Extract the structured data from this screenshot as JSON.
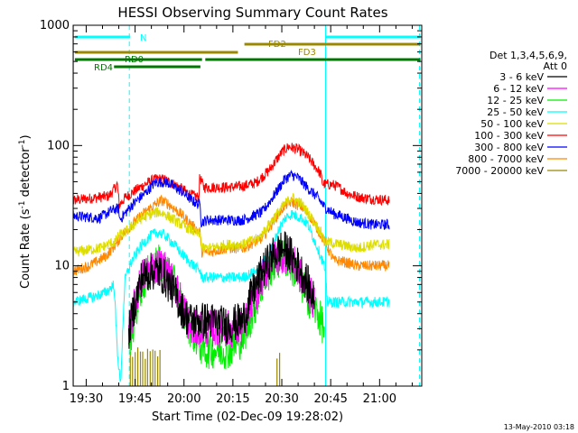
{
  "chart_data": {
    "type": "line",
    "title": "HESSI Observing Summary Count Rates",
    "xlabel": "Start Time (02-Dec-09 19:28:02)",
    "ylabel_main": "Count Rate (s",
    "ylabel_sup1": "-1",
    "ylabel_mid": " detector",
    "ylabel_sup2": "-1",
    "ylabel_end": ")",
    "yscale": "log",
    "ylim": [
      1,
      1000
    ],
    "xlim_minutes": [
      -2.03,
      104.9
    ],
    "x_ticks": [
      {
        "label": "19:30",
        "min": 1.97
      },
      {
        "label": "19:45",
        "min": 16.97
      },
      {
        "label": "20:00",
        "min": 31.97
      },
      {
        "label": "20:15",
        "min": 46.97
      },
      {
        "label": "20:30",
        "min": 61.97
      },
      {
        "label": "20:45",
        "min": 76.97
      },
      {
        "label": "21:00",
        "min": 91.97
      }
    ],
    "y_ticks": [
      {
        "label": "1",
        "v": 1
      },
      {
        "label": "10",
        "v": 10
      },
      {
        "label": "100",
        "v": 100
      },
      {
        "label": "1000",
        "v": 1000
      }
    ],
    "legend": {
      "header1": "Det 1,3,4,5,6,9,",
      "header2": "Att 0",
      "entries": [
        {
          "label": "3 - 6 keV",
          "color": "#000000"
        },
        {
          "label": "6 - 12 keV",
          "color": "#ff00ff"
        },
        {
          "label": "12 - 25 keV",
          "color": "#00ee00"
        },
        {
          "label": "25 - 50 keV",
          "color": "#00ffff"
        },
        {
          "label": "50 - 100 keV",
          "color": "#dddd00"
        },
        {
          "label": "100 - 300 keV",
          "color": "#ff0000"
        },
        {
          "label": "300 - 800 keV",
          "color": "#0000ff"
        },
        {
          "label": "800 - 7000 keV",
          "color": "#ff8800"
        },
        {
          "label": "7000 - 20000 keV",
          "color": "#998800"
        }
      ]
    },
    "flag_bars": [
      {
        "label": "N",
        "color": "#00ffff",
        "segments": [
          [
            -1.5,
            15.5
          ],
          [
            75.5,
            104.5
          ]
        ]
      },
      {
        "label": "FD2",
        "color": "#998800",
        "segments": [
          [
            50.5,
            104.5
          ]
        ]
      },
      {
        "label": "FD3",
        "color": "#998800",
        "segments": [
          [
            -1.5,
            48.5
          ]
        ]
      },
      {
        "label": "RD0",
        "color": "#007700",
        "segments": [
          [
            -1.5,
            37.5
          ],
          [
            38.5,
            104.5
          ]
        ]
      },
      {
        "label": "RD4",
        "color": "#007700",
        "segments": [
          [
            10.5,
            37.0
          ]
        ]
      }
    ],
    "series": [
      {
        "name": "100 - 300 keV",
        "color": "#ff0000",
        "points": [
          [
            -2,
            35
          ],
          [
            9,
            38
          ],
          [
            11,
            45
          ],
          [
            11.5,
            48
          ],
          [
            12.1,
            32
          ],
          [
            14,
            37
          ],
          [
            18,
            44
          ],
          [
            22,
            51
          ],
          [
            24,
            53
          ],
          [
            26,
            52
          ],
          [
            30,
            46
          ],
          [
            34,
            39
          ],
          [
            36.5,
            37
          ],
          [
            36.8,
            55
          ],
          [
            38,
            45
          ],
          [
            42,
            45
          ],
          [
            46,
            45
          ],
          [
            50,
            46
          ],
          [
            54,
            49
          ],
          [
            58,
            62
          ],
          [
            62,
            88
          ],
          [
            64,
            98
          ],
          [
            67,
            93
          ],
          [
            70,
            80
          ],
          [
            73,
            63
          ],
          [
            74,
            57
          ],
          [
            74.5,
            48
          ],
          [
            78,
            47
          ],
          [
            80,
            44
          ],
          [
            82,
            40
          ],
          [
            86,
            37
          ],
          [
            90,
            36
          ],
          [
            95,
            35
          ]
        ]
      },
      {
        "name": "300 - 800 keV",
        "color": "#0000ff",
        "points": [
          [
            -2,
            26
          ],
          [
            6,
            25
          ],
          [
            10,
            29
          ],
          [
            12,
            30
          ],
          [
            12.2,
            24
          ],
          [
            16,
            32
          ],
          [
            20,
            40
          ],
          [
            23,
            49
          ],
          [
            25,
            50
          ],
          [
            27,
            49
          ],
          [
            31,
            42
          ],
          [
            35,
            34
          ],
          [
            37,
            32
          ],
          [
            37.2,
            23
          ],
          [
            39,
            24
          ],
          [
            44,
            24
          ],
          [
            50,
            24
          ],
          [
            56,
            28
          ],
          [
            60,
            40
          ],
          [
            63,
            53
          ],
          [
            65,
            57
          ],
          [
            67,
            54
          ],
          [
            70,
            44
          ],
          [
            73,
            37
          ],
          [
            75,
            31
          ],
          [
            78,
            27
          ],
          [
            80,
            26
          ],
          [
            85,
            23
          ],
          [
            90,
            22
          ],
          [
            95,
            22
          ]
        ]
      },
      {
        "name": "800 - 7000 keV",
        "color": "#ff8800",
        "points": [
          [
            -2,
            9
          ],
          [
            3,
            10
          ],
          [
            8,
            12
          ],
          [
            11,
            15
          ],
          [
            13,
            18
          ],
          [
            16,
            22
          ],
          [
            20,
            28
          ],
          [
            23,
            32
          ],
          [
            25,
            35
          ],
          [
            27,
            33
          ],
          [
            31,
            27
          ],
          [
            35,
            21
          ],
          [
            37,
            19
          ],
          [
            37.3,
            13
          ],
          [
            40,
            13
          ],
          [
            45,
            14
          ],
          [
            50,
            14
          ],
          [
            56,
            17
          ],
          [
            60,
            25
          ],
          [
            63,
            32
          ],
          [
            65,
            34
          ],
          [
            68,
            31
          ],
          [
            71,
            25
          ],
          [
            74,
            18
          ],
          [
            75,
            16
          ],
          [
            78,
            11
          ],
          [
            80,
            11
          ],
          [
            85,
            10
          ],
          [
            90,
            10
          ],
          [
            95,
            10
          ]
        ]
      },
      {
        "name": "50 - 100 keV",
        "color": "#dddd00",
        "points": [
          [
            -2,
            13
          ],
          [
            6,
            14
          ],
          [
            11,
            16
          ],
          [
            12,
            18
          ],
          [
            14,
            19
          ],
          [
            18,
            24
          ],
          [
            22,
            27
          ],
          [
            24,
            28
          ],
          [
            26,
            27
          ],
          [
            30,
            23
          ],
          [
            34,
            20
          ],
          [
            37,
            18
          ],
          [
            37.3,
            14
          ],
          [
            40,
            14
          ],
          [
            45,
            15
          ],
          [
            50,
            15
          ],
          [
            55,
            17
          ],
          [
            60,
            26
          ],
          [
            63,
            33
          ],
          [
            65,
            37
          ],
          [
            68,
            33
          ],
          [
            71,
            25
          ],
          [
            74,
            19
          ],
          [
            75,
            16
          ],
          [
            80,
            15
          ],
          [
            85,
            14
          ],
          [
            90,
            15
          ],
          [
            95,
            15
          ]
        ]
      },
      {
        "name": "25 - 50 keV",
        "color": "#00ffff",
        "points": [
          [
            -2,
            5
          ],
          [
            4,
            5.5
          ],
          [
            8,
            6
          ],
          [
            10.5,
            7
          ],
          [
            11.5,
            2
          ],
          [
            12.5,
            1
          ],
          [
            13.5,
            5
          ],
          [
            14,
            8
          ],
          [
            16,
            11
          ],
          [
            19,
            15
          ],
          [
            22,
            18
          ],
          [
            24,
            19
          ],
          [
            26,
            18
          ],
          [
            29,
            15
          ],
          [
            32,
            12
          ],
          [
            35,
            10
          ],
          [
            37,
            9
          ],
          [
            37.3,
            8
          ],
          [
            40,
            8
          ],
          [
            45,
            8
          ],
          [
            50,
            8
          ],
          [
            54,
            9
          ],
          [
            58,
            12
          ],
          [
            61,
            20
          ],
          [
            63,
            25
          ],
          [
            65,
            27
          ],
          [
            68,
            25
          ],
          [
            70,
            22
          ],
          [
            73,
            14
          ],
          [
            75,
            10
          ],
          [
            76,
            5
          ],
          [
            80,
            5
          ],
          [
            85,
            5
          ],
          [
            90,
            5
          ],
          [
            95,
            5
          ]
        ]
      },
      {
        "name": "12 - 25 keV",
        "color": "#00ee00",
        "points": [
          [
            15,
            2
          ],
          [
            17,
            4
          ],
          [
            19,
            7
          ],
          [
            22,
            9.5
          ],
          [
            24,
            10.5
          ],
          [
            26,
            9.5
          ],
          [
            29,
            7
          ],
          [
            32,
            4
          ],
          [
            34,
            3
          ],
          [
            38,
            2
          ],
          [
            42,
            2
          ],
          [
            46,
            2
          ],
          [
            50,
            2.5
          ],
          [
            53,
            4
          ],
          [
            56,
            7
          ],
          [
            59,
            10
          ],
          [
            62,
            12
          ],
          [
            64,
            11
          ],
          [
            67,
            8
          ],
          [
            70,
            5.5
          ],
          [
            73,
            4
          ],
          [
            75,
            3
          ]
        ]
      },
      {
        "name": "6 - 12 keV",
        "color": "#ff00ff",
        "points": [
          [
            15,
            2.5
          ],
          [
            17,
            5
          ],
          [
            19,
            8
          ],
          [
            22,
            9.5
          ],
          [
            24,
            10
          ],
          [
            26,
            9.5
          ],
          [
            29,
            7
          ],
          [
            32,
            4.5
          ],
          [
            34,
            3
          ],
          [
            40,
            3
          ],
          [
            45,
            3
          ],
          [
            50,
            3
          ],
          [
            53,
            5
          ],
          [
            56,
            8
          ],
          [
            59,
            11
          ],
          [
            62,
            12.5
          ],
          [
            64,
            12
          ],
          [
            67,
            9
          ],
          [
            70,
            6
          ],
          [
            72,
            5
          ]
        ]
      },
      {
        "name": "3 - 6 keV",
        "color": "#000000",
        "points": [
          [
            15,
            2.8
          ],
          [
            17,
            5
          ],
          [
            19,
            8
          ],
          [
            22,
            9
          ],
          [
            24,
            9
          ],
          [
            26,
            8
          ],
          [
            29,
            6
          ],
          [
            32,
            4
          ],
          [
            34,
            3.5
          ],
          [
            40,
            3.5
          ],
          [
            45,
            3.2
          ],
          [
            50,
            3.5
          ],
          [
            53,
            6
          ],
          [
            56,
            9
          ],
          [
            59,
            12
          ],
          [
            62,
            14
          ],
          [
            64,
            13
          ],
          [
            67,
            10
          ],
          [
            70,
            7
          ],
          [
            72,
            5
          ]
        ]
      }
    ],
    "attenuator_spikes": [
      15.5,
      16.2,
      17.0,
      17.8,
      18.6,
      19.3,
      20.1,
      20.8,
      21.6,
      22.4,
      23.1,
      23.9,
      24.6,
      60.5,
      61.3
    ],
    "vlines": [
      {
        "min": -1.95,
        "style": "solid",
        "color": "#00ffff"
      },
      {
        "min": 15.2,
        "style": "dashed",
        "color": "#00ffff"
      },
      {
        "min": 75.4,
        "style": "solid",
        "color": "#00ffff"
      },
      {
        "min": 104.2,
        "style": "dashed",
        "color": "#00ffff"
      }
    ]
  },
  "footer": {
    "date": "13-May-2010 03:18"
  }
}
